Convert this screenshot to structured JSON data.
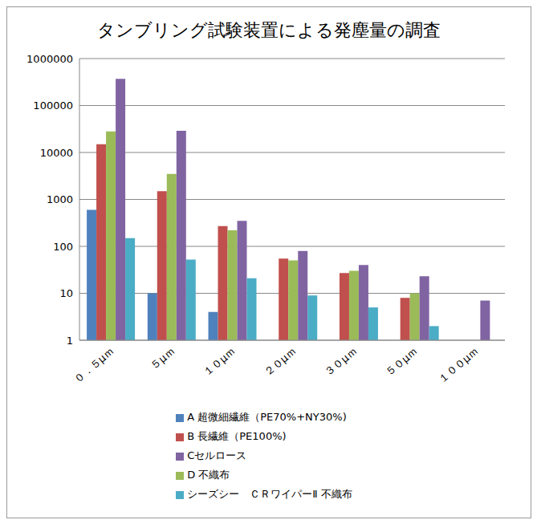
{
  "chart_data": {
    "type": "bar",
    "title": "タンブリング試験装置による発塵量の調査",
    "categories": [
      "０．５μｍ",
      "５μｍ",
      "１０μｍ",
      "２０μｍ",
      "３０μｍ",
      "５０μｍ",
      "１００μｍ"
    ],
    "series": [
      {
        "name": "A 超微細繊維（PE70%+NY30%)",
        "color": "#4f81bd",
        "values": [
          600,
          10,
          4,
          1,
          1,
          1,
          1
        ]
      },
      {
        "name": "B 長繊維（PE100%)",
        "color": "#c0504d",
        "values": [
          15000,
          1500,
          270,
          55,
          27,
          8,
          1
        ]
      },
      {
        "name": "D 不織布",
        "color": "#9bbb59",
        "values": [
          28000,
          3500,
          220,
          50,
          30,
          10,
          1
        ]
      },
      {
        "name": "Cセルロース",
        "color": "#8064a2",
        "values": [
          370000,
          29000,
          350,
          80,
          40,
          23,
          7
        ]
      },
      {
        "name": "シーズシー　ＣＲワイパーⅡ 不織布",
        "color": "#4bacc6",
        "values": [
          150,
          52,
          21,
          9,
          5,
          2,
          1
        ]
      }
    ],
    "ylim": [
      1,
      1000000
    ],
    "yticks": [
      1,
      10,
      100,
      1000,
      10000,
      100000,
      1000000
    ],
    "log": "y",
    "grid": true,
    "legend": "bottom"
  }
}
